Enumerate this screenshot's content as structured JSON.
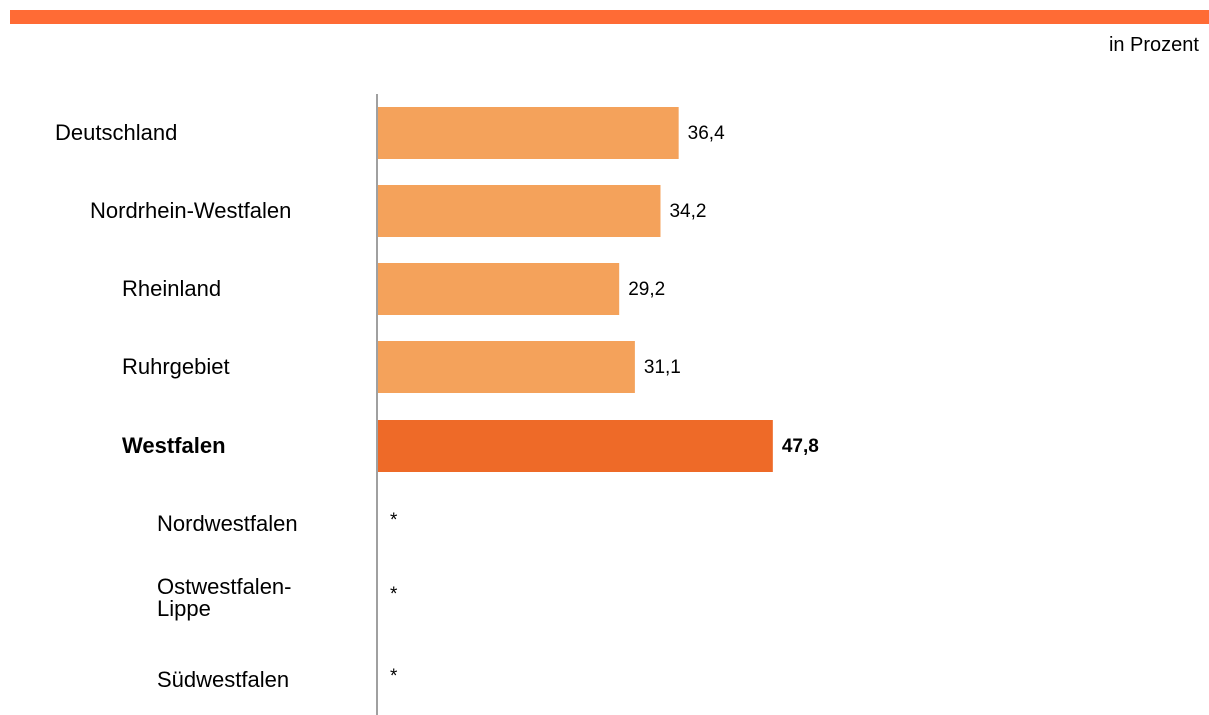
{
  "unit_label": "in Prozent",
  "colors": {
    "top_bar": "#ff6b35",
    "bar": "#f4a25b",
    "bar_highlight": "#ee6a28",
    "axis": "#808080"
  },
  "chart_data": {
    "type": "bar",
    "orientation": "horizontal",
    "xlim": [
      0,
      100
    ],
    "grid": false,
    "categories": [
      "Deutschland",
      "Nordrhein-Westfalen",
      "Rheinland",
      "Ruhrgebiet",
      "Westfalen",
      "Nordwestfalen",
      "Ostwestfalen-Lippe",
      "Südwestfalen"
    ],
    "category_levels": [
      0,
      1,
      2,
      2,
      2,
      3,
      3,
      3
    ],
    "highlighted": [
      "Westfalen"
    ],
    "values": [
      36.4,
      34.2,
      29.2,
      31.1,
      47.8,
      null,
      null,
      null
    ],
    "value_labels": [
      "36,4",
      "34,2",
      "29,2",
      "31,1",
      "47,8",
      "*",
      "*",
      "*"
    ]
  }
}
